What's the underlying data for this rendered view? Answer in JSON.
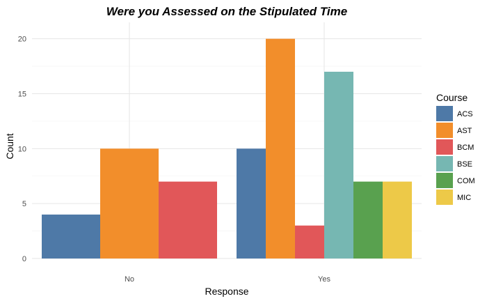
{
  "chart_data": {
    "type": "bar",
    "title": "Were you Assessed on the Stipulated Time",
    "xlabel": "Response",
    "ylabel": "Count",
    "categories": [
      "No",
      "Yes"
    ],
    "ylim": [
      0,
      21.5
    ],
    "yticks": [
      0,
      5,
      10,
      15,
      20
    ],
    "grid": true,
    "legend": {
      "title": "Course",
      "position": "right"
    },
    "series": [
      {
        "name": "ACS",
        "color": "#4e79a7",
        "values": [
          4,
          10
        ]
      },
      {
        "name": "AST",
        "color": "#f28e2b",
        "values": [
          10,
          20
        ]
      },
      {
        "name": "BCM",
        "color": "#e15759",
        "values": [
          7,
          3
        ]
      },
      {
        "name": "BSE",
        "color": "#76b7b2",
        "values": [
          null,
          17
        ]
      },
      {
        "name": "COM",
        "color": "#59a14f",
        "values": [
          null,
          7
        ]
      },
      {
        "name": "MIC",
        "color": "#edc948",
        "values": [
          null,
          7
        ]
      }
    ]
  }
}
